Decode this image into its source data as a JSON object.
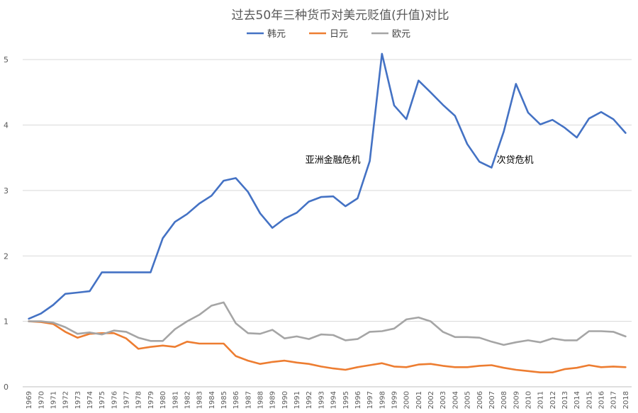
{
  "chart_data": {
    "type": "line",
    "title": "过去50年三种货币对美元贬值(升值)对比",
    "x": [
      "1969",
      "1970",
      "1971",
      "1972",
      "1973",
      "1974",
      "1975",
      "1976",
      "1977",
      "1978",
      "1979",
      "1980",
      "1981",
      "1982",
      "1983",
      "1984",
      "1985",
      "1986",
      "1987",
      "1988",
      "1989",
      "1990",
      "1991",
      "1992",
      "1993",
      "1994",
      "1995",
      "1996",
      "1997",
      "1998",
      "1999",
      "2000",
      "2001",
      "2002",
      "2003",
      "2004",
      "2005",
      "2006",
      "2007",
      "2008",
      "2009",
      "2010",
      "2011",
      "2012",
      "2013",
      "2014",
      "2015",
      "2016",
      "2017",
      "2018"
    ],
    "ylim": [
      0,
      5.5
    ],
    "yticks": [
      0,
      1,
      2,
      3,
      4,
      5
    ],
    "grid": true,
    "legend_position": "top",
    "series": [
      {
        "name": "韩元",
        "color": "#4472c4",
        "values": [
          1.04,
          1.12,
          1.25,
          1.42,
          1.44,
          1.46,
          1.75,
          1.75,
          1.75,
          1.75,
          1.75,
          2.27,
          2.52,
          2.64,
          2.8,
          2.92,
          3.15,
          3.19,
          2.98,
          2.65,
          2.43,
          2.57,
          2.66,
          2.83,
          2.9,
          2.91,
          2.76,
          2.88,
          3.45,
          5.09,
          4.3,
          4.09,
          4.68,
          4.5,
          4.31,
          4.14,
          3.71,
          3.44,
          3.35,
          3.9,
          4.63,
          4.19,
          4.01,
          4.08,
          3.96,
          3.81,
          4.1,
          4.2,
          4.09,
          3.88
        ]
      },
      {
        "name": "日元",
        "color": "#ed7d31",
        "values": [
          1.0,
          0.99,
          0.96,
          0.84,
          0.75,
          0.81,
          0.82,
          0.82,
          0.74,
          0.58,
          0.61,
          0.63,
          0.61,
          0.69,
          0.66,
          0.66,
          0.66,
          0.47,
          0.4,
          0.35,
          0.38,
          0.4,
          0.37,
          0.35,
          0.31,
          0.28,
          0.26,
          0.3,
          0.33,
          0.36,
          0.31,
          0.3,
          0.34,
          0.35,
          0.32,
          0.3,
          0.3,
          0.32,
          0.33,
          0.29,
          0.26,
          0.24,
          0.22,
          0.22,
          0.27,
          0.29,
          0.33,
          0.3,
          0.31,
          0.3
        ]
      },
      {
        "name": "欧元",
        "color": "#a5a5a5",
        "values": [
          1.0,
          1.0,
          0.98,
          0.91,
          0.81,
          0.83,
          0.8,
          0.86,
          0.84,
          0.75,
          0.7,
          0.7,
          0.88,
          1.0,
          1.1,
          1.24,
          1.29,
          0.97,
          0.82,
          0.81,
          0.87,
          0.74,
          0.77,
          0.73,
          0.8,
          0.79,
          0.71,
          0.73,
          0.84,
          0.85,
          0.89,
          1.03,
          1.06,
          1.0,
          0.84,
          0.76,
          0.76,
          0.75,
          0.69,
          0.64,
          0.68,
          0.71,
          0.68,
          0.74,
          0.71,
          0.71,
          0.85,
          0.85,
          0.84,
          0.77
        ]
      }
    ],
    "annotations": [
      {
        "text": "亚洲金融危机",
        "x": "1997",
        "y": 3.42
      },
      {
        "text": "次贷危机",
        "x": "2008",
        "y": 3.42
      }
    ]
  }
}
